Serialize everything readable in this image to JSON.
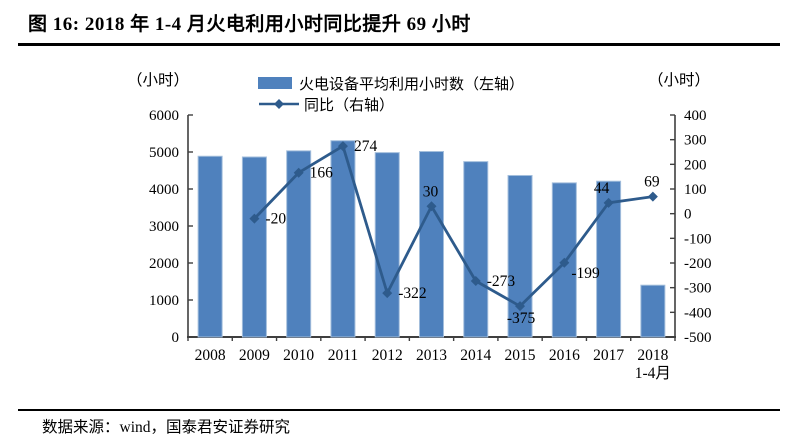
{
  "title": "图 16:  2018 年 1-4 月火电利用小时同比提升 69 小时",
  "source_note": "数据来源：wind，国泰君安证券研究",
  "left_axis_unit": "（小时）",
  "right_axis_unit": "（小时）",
  "legend": {
    "bar_label": "火电设备平均利用小时数（左轴）",
    "line_label": "同比（右轴）"
  },
  "colors": {
    "bar": "#4F81BD",
    "bar_border": "#A3BEDC",
    "line": "#2E5B8C",
    "axis": "#3F3F3F",
    "text": "#000000"
  },
  "chart_data": {
    "type": "bar+line combo",
    "title": "2018 年 1-4 月火电利用小时同比提升 69 小时",
    "categories": [
      "2008",
      "2009",
      "2010",
      "2011",
      "2012",
      "2013",
      "2014",
      "2015",
      "2016",
      "2017",
      "2018"
    ],
    "last_category_sub_label": "1-4月",
    "series": [
      {
        "name": "火电设备平均利用小时数（左轴）",
        "type": "bar",
        "axis": "left",
        "values": [
          4885,
          4865,
          5031,
          5305,
          4983,
          5013,
          4740,
          4365,
          4166,
          4210,
          1400
        ]
      },
      {
        "name": "同比（右轴）",
        "type": "line",
        "axis": "right",
        "values": [
          null,
          -20,
          166,
          274,
          -322,
          30,
          -273,
          -375,
          -199,
          44,
          69
        ],
        "label_positions": [
          null,
          "right",
          "right",
          "right",
          "right",
          "above",
          "right",
          "below",
          "below-right",
          "above-left",
          "above"
        ]
      }
    ],
    "left_axis": {
      "min": 0,
      "max": 6000,
      "step": 1000,
      "tick_labels": [
        "0",
        "1000",
        "2000",
        "3000",
        "4000",
        "5000",
        "6000"
      ]
    },
    "right_axis": {
      "min": -500,
      "max": 400,
      "step": 100,
      "tick_labels": [
        "-500",
        "-400",
        "-300",
        "-200",
        "-100",
        "0",
        "100",
        "200",
        "300",
        "400"
      ]
    },
    "grid": false,
    "legend_position": "top-center"
  }
}
